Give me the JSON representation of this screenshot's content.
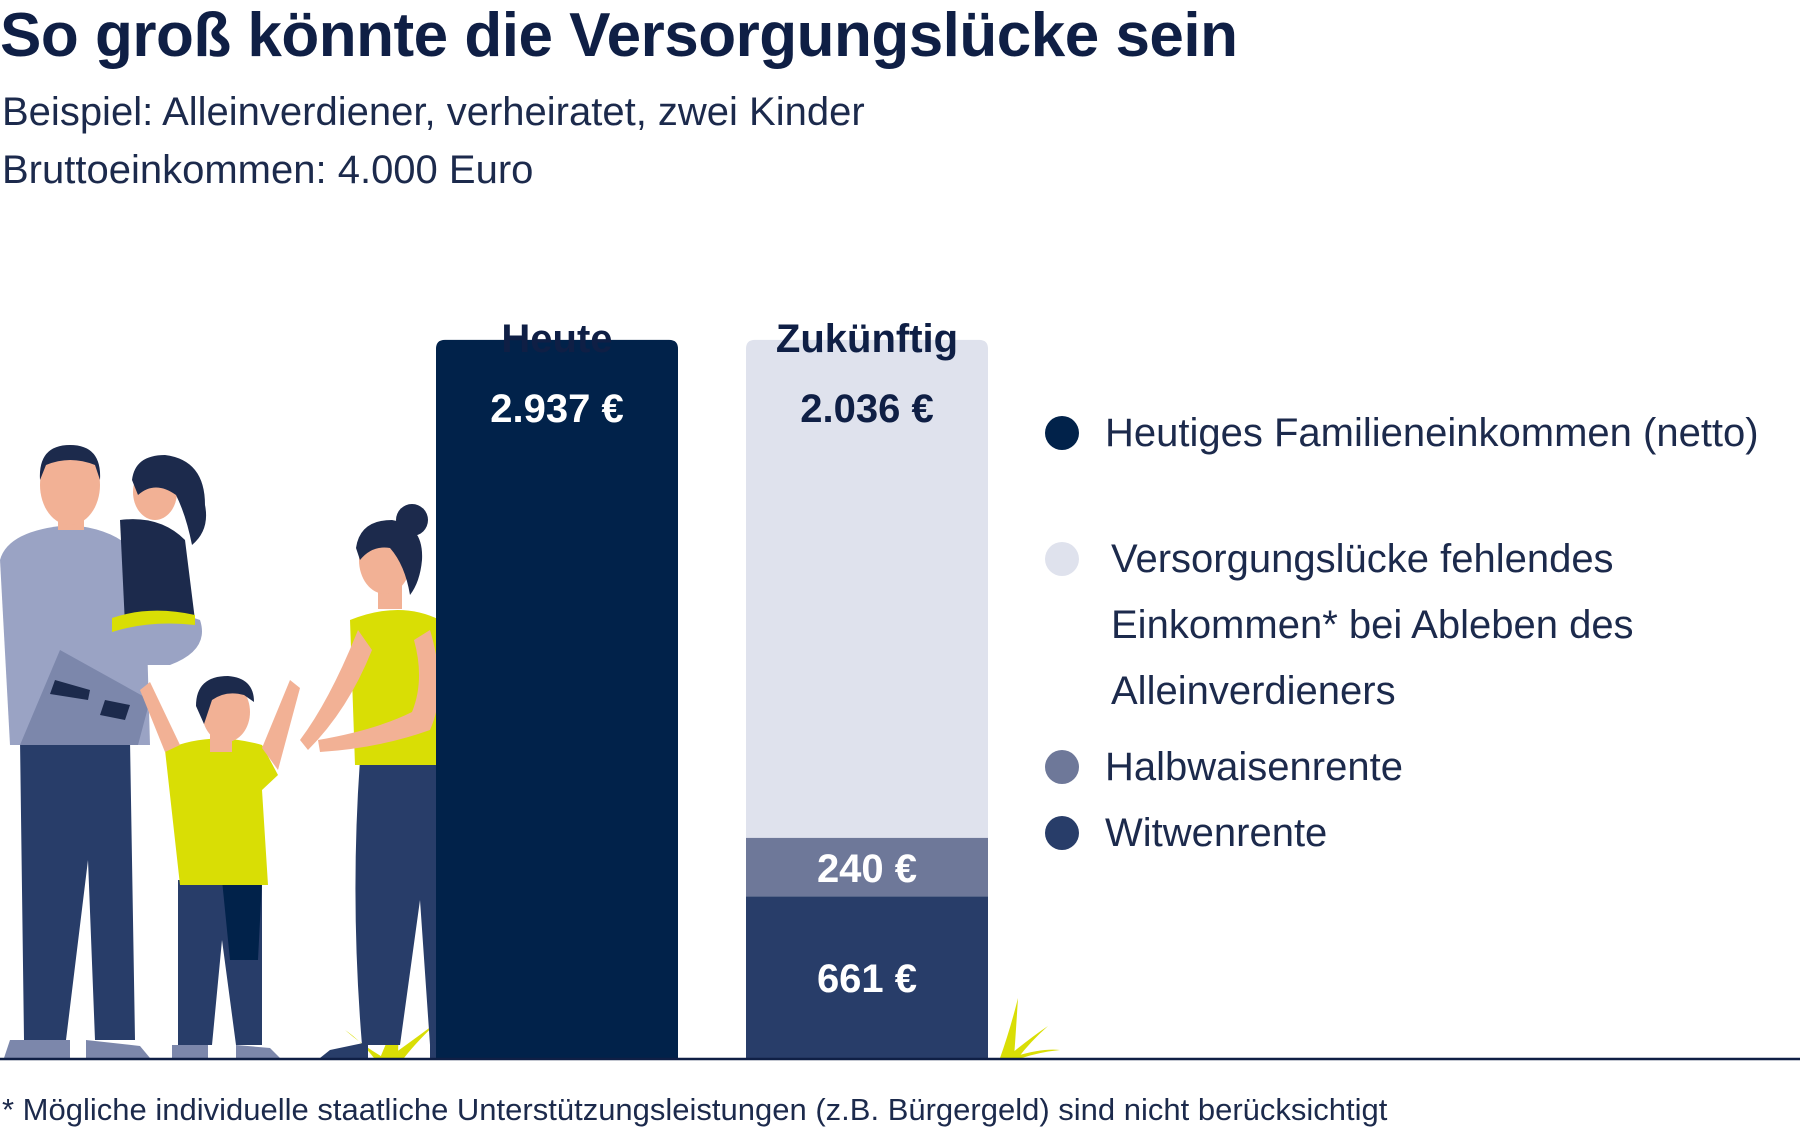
{
  "title": "So groß könnte die Versorgungslücke sein",
  "subtitle_lines": [
    "Beispiel: Alleinverdiener, verheiratet, zwei Kinder",
    "Bruttoeinkommen: 4.000 Euro"
  ],
  "footnote": "* Mögliche individuelle staatliche Unterstützungsleistungen (z.B. Bürgergeld) sind nicht berücksichtigt",
  "illustration": "family-illustration",
  "colors": {
    "navy": "#01224a",
    "light_gray": "#dfe2ed",
    "slate": "#6e7899",
    "dark_blue": "#283d69",
    "accent_yellow": "#d9de05"
  },
  "chart_data": {
    "type": "bar",
    "stacked": true,
    "categories": [
      "Heute",
      "Zukünftig"
    ],
    "unit": "€",
    "series": [
      {
        "name": "Heutiges Familieneinkommen (netto)",
        "values": [
          2937,
          0
        ],
        "labels": [
          "2.937 €",
          ""
        ],
        "color": "#01224a"
      },
      {
        "name": "Witwenrente",
        "values": [
          0,
          661
        ],
        "labels": [
          "",
          "661 €"
        ],
        "color": "#283d69"
      },
      {
        "name": "Halbwaisenrente",
        "values": [
          0,
          240
        ],
        "labels": [
          "",
          "240 €"
        ],
        "color": "#6e7899"
      },
      {
        "name": "Versorgungslücke fehlendes Einkommen* bei Ableben des Alleinverdieners",
        "values": [
          0,
          2036
        ],
        "labels": [
          "",
          "2.036 €"
        ],
        "color": "#dfe2ed"
      }
    ],
    "legend": {
      "position": "right",
      "items": [
        {
          "lines": [
            "Heutiges Familieneinkommen (netto)"
          ],
          "color": "#01224a"
        },
        {
          "lines": [
            "Versorgungslücke fehlendes",
            "Einkommen* bei Ableben des",
            "Alleinverdieners"
          ],
          "color": "#dfe2ed"
        },
        {
          "lines": [
            "Halbwaisenrente"
          ],
          "color": "#6e7899"
        },
        {
          "lines": [
            "Witwenrente"
          ],
          "color": "#283d69"
        }
      ]
    },
    "xlabel": "",
    "ylabel": "",
    "grid": false
  }
}
